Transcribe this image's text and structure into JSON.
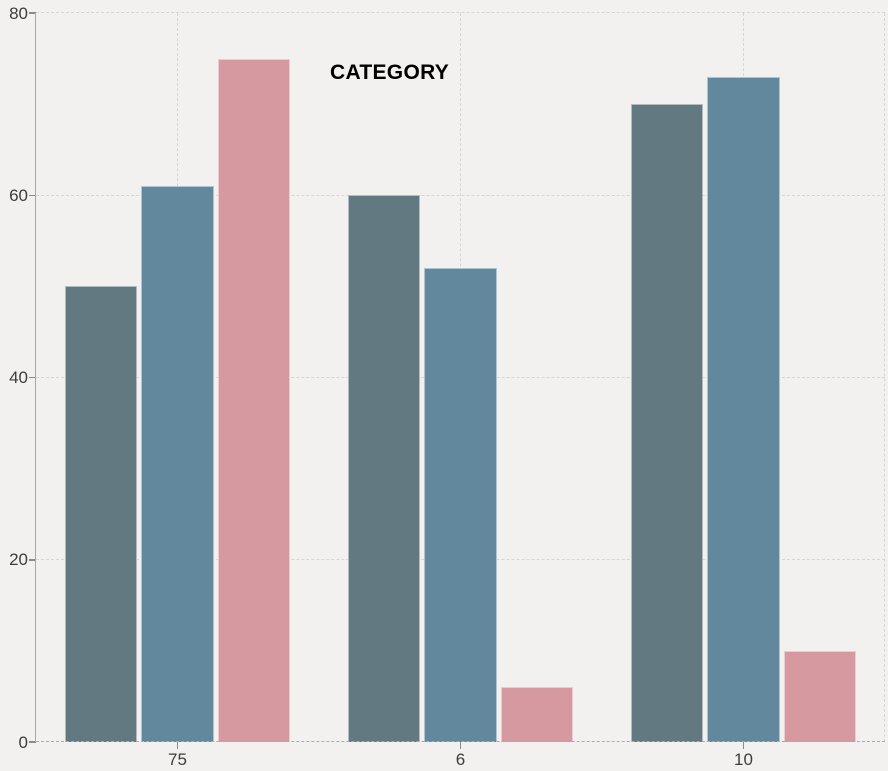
{
  "chart_data": {
    "type": "bar",
    "title": "CATEGORY",
    "xlabel": "",
    "ylabel": "",
    "categories": [
      "75",
      "6",
      "10"
    ],
    "series": [
      {
        "name": "series-dark-slate",
        "color": "#637981",
        "values": [
          50,
          60,
          70
        ]
      },
      {
        "name": "series-steel-blue",
        "color": "#62889e",
        "values": [
          61,
          52,
          73
        ]
      },
      {
        "name": "series-dusty-pink",
        "color": "#d799a0",
        "values": [
          75,
          6,
          10
        ]
      }
    ],
    "yticks": [
      0,
      20,
      40,
      60,
      80
    ],
    "ylim": [
      0,
      80
    ],
    "grid": true,
    "legend_position": "none"
  },
  "style": {
    "background": "#f2f1f0",
    "gridline_color": "#d6d6d6",
    "axis_color": "#a8a8a8",
    "tick_mark_color": "#8a8a8a",
    "tick_label_color": "#3d3d3d",
    "baseline_color": "#ababab",
    "bar_edge_color": "rgba(255,255,255,0.5)",
    "title_color": "#000000"
  }
}
